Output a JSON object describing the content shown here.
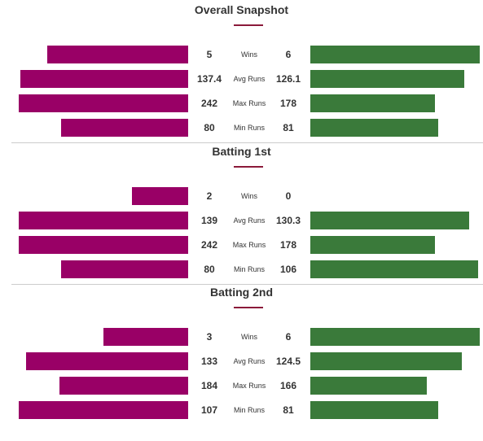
{
  "colors": {
    "team_a": "#990066",
    "team_b": "#3a7a3a",
    "accent": "#8b1a3a"
  },
  "chart_data": [
    {
      "type": "bar",
      "title": "Overall Snapshot",
      "categories": [
        "Wins",
        "Avg Runs",
        "Max Runs",
        "Min Runs"
      ],
      "series": [
        {
          "values": [
            5,
            137.4,
            242,
            80
          ]
        },
        {
          "values": [
            6,
            126.1,
            178,
            81
          ]
        }
      ],
      "labels": {
        "left": [
          "5",
          "137.4",
          "242",
          "80"
        ],
        "right": [
          "6",
          "126.1",
          "178",
          "81"
        ]
      }
    },
    {
      "type": "bar",
      "title": "Batting 1st",
      "categories": [
        "Wins",
        "Avg Runs",
        "Max Runs",
        "Min Runs"
      ],
      "series": [
        {
          "values": [
            2,
            139,
            242,
            80
          ]
        },
        {
          "values": [
            0,
            130.3,
            178,
            106
          ]
        }
      ],
      "labels": {
        "left": [
          "2",
          "139",
          "242",
          "80"
        ],
        "right": [
          "0",
          "130.3",
          "178",
          "106"
        ]
      }
    },
    {
      "type": "bar",
      "title": "Batting 2nd",
      "categories": [
        "Wins",
        "Avg Runs",
        "Max Runs",
        "Min Runs"
      ],
      "series": [
        {
          "values": [
            3,
            133,
            184,
            107
          ]
        },
        {
          "values": [
            6,
            124.5,
            166,
            81
          ]
        }
      ],
      "labels": {
        "left": [
          "3",
          "133",
          "184",
          "107"
        ],
        "right": [
          "6",
          "124.5",
          "166",
          "81"
        ]
      }
    }
  ]
}
